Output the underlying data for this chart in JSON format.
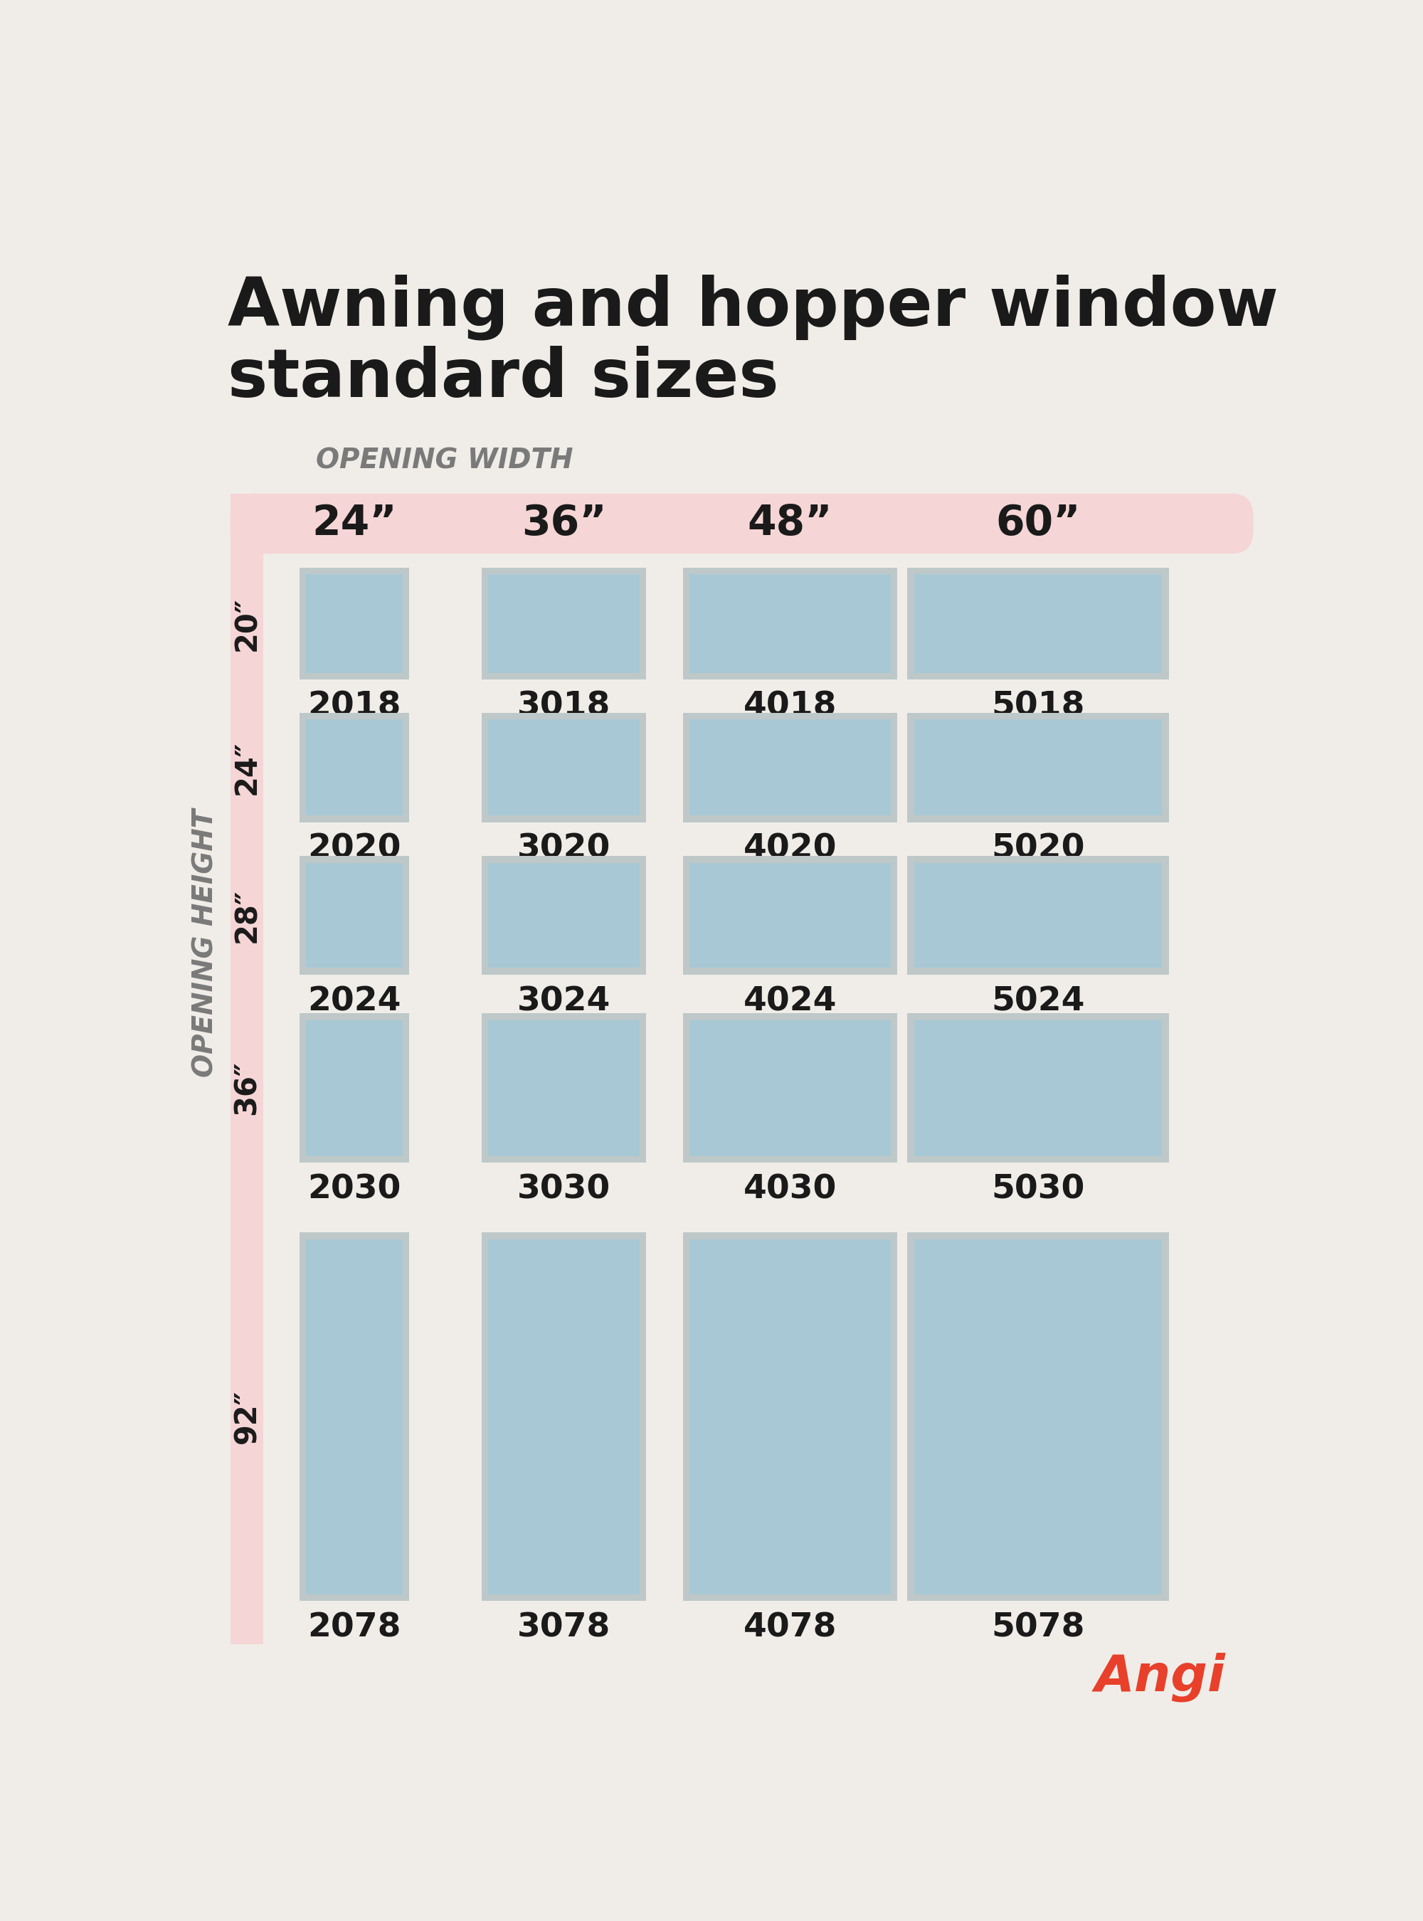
{
  "title_line1": "Awning and hopper window",
  "title_line2": "standard sizes",
  "bg_color": "#f0ede8",
  "pink_color": "#f5d5d5",
  "window_fill_color": "#a8c8d5",
  "window_frame_color": "#bec8c8",
  "text_dark": "#1a1a1a",
  "text_gray": "#7a7a7a",
  "opening_width_label": "OPENING WIDTH",
  "opening_height_label": "OPENING HEIGHT",
  "col_labels": [
    "24”",
    "36”",
    "48”",
    "60”"
  ],
  "row_labels": [
    "20””",
    "24””",
    "28””",
    "36””",
    "92””"
  ],
  "row_labels_clean": [
    "20\"",
    "24\"",
    "28\"",
    "36\"",
    "92\""
  ],
  "windows": [
    [
      "2018",
      "3018",
      "4018",
      "5018"
    ],
    [
      "2020",
      "3020",
      "4020",
      "5020"
    ],
    [
      "2024",
      "3024",
      "4024",
      "5024"
    ],
    [
      "2030",
      "3030",
      "4030",
      "5030"
    ],
    [
      "2078",
      "3078",
      "4078",
      "5078"
    ]
  ],
  "title_fontsize": 68,
  "col_header_fontsize": 42,
  "row_label_fontsize": 30,
  "code_fontsize": 34,
  "axis_label_fontsize": 28,
  "angi_fontsize": 52
}
